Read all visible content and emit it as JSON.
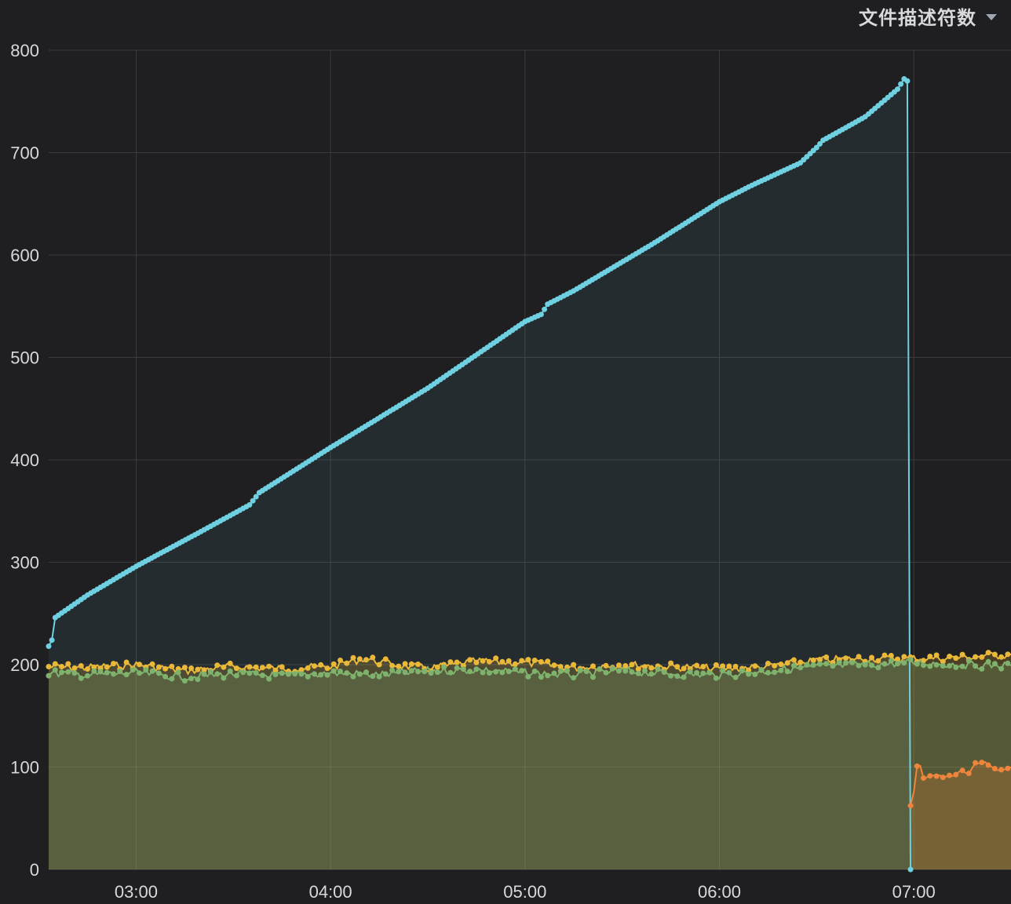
{
  "panel": {
    "title": "文件描述符数",
    "menu_icon": "caret-down-icon"
  },
  "chart_data": {
    "type": "line",
    "title": "文件描述符数",
    "xlabel": "",
    "ylabel": "",
    "x_unit": "time (HH:MM)",
    "xlim": [
      "02:33",
      "07:30"
    ],
    "ylim": [
      0,
      800
    ],
    "grid": true,
    "legend": "none",
    "x_ticks": [
      "03:00",
      "04:00",
      "05:00",
      "06:00",
      "07:00"
    ],
    "y_ticks": [
      0,
      100,
      200,
      300,
      400,
      500,
      600,
      700,
      800
    ],
    "series": [
      {
        "color": "#6ed0e0",
        "fill": "#6ed0e0",
        "points": [
          [
            "02:33",
            218
          ],
          [
            "02:34",
            224
          ],
          [
            "02:35",
            246
          ],
          [
            "02:45",
            268
          ],
          [
            "03:00",
            296
          ],
          [
            "03:20",
            330
          ],
          [
            "03:35",
            356
          ],
          [
            "03:38",
            368
          ],
          [
            "04:00",
            412
          ],
          [
            "04:30",
            470
          ],
          [
            "05:00",
            535
          ],
          [
            "05:05",
            542
          ],
          [
            "05:07",
            552
          ],
          [
            "05:15",
            565
          ],
          [
            "05:40",
            612
          ],
          [
            "06:00",
            652
          ],
          [
            "06:10",
            668
          ],
          [
            "06:25",
            690
          ],
          [
            "06:30",
            705
          ],
          [
            "06:32",
            712
          ],
          [
            "06:45",
            735
          ],
          [
            "06:55",
            762
          ],
          [
            "06:57",
            772
          ],
          [
            "06:58",
            770
          ],
          [
            "06:59",
            0
          ]
        ]
      },
      {
        "color": "#eab839",
        "fill": "#eab839",
        "points": [
          [
            "02:33",
            198
          ],
          [
            "02:45",
            197
          ],
          [
            "03:00",
            200
          ],
          [
            "03:15",
            194
          ],
          [
            "03:30",
            198
          ],
          [
            "03:45",
            196
          ],
          [
            "04:00",
            198
          ],
          [
            "04:10",
            206
          ],
          [
            "04:20",
            200
          ],
          [
            "04:30",
            196
          ],
          [
            "04:45",
            203
          ],
          [
            "05:00",
            202
          ],
          [
            "05:15",
            197
          ],
          [
            "05:30",
            200
          ],
          [
            "05:45",
            198
          ],
          [
            "06:00",
            196
          ],
          [
            "06:15",
            198
          ],
          [
            "06:30",
            204
          ],
          [
            "06:45",
            206
          ],
          [
            "07:00",
            206
          ],
          [
            "07:15",
            207
          ],
          [
            "07:30",
            210
          ]
        ]
      },
      {
        "color": "#7eb26d",
        "fill": "#7eb26d",
        "points": [
          [
            "02:33",
            192
          ],
          [
            "02:45",
            190
          ],
          [
            "03:00",
            192
          ],
          [
            "03:15",
            188
          ],
          [
            "03:30",
            191
          ],
          [
            "03:45",
            189
          ],
          [
            "04:00",
            192
          ],
          [
            "04:15",
            190
          ],
          [
            "04:30",
            194
          ],
          [
            "04:45",
            195
          ],
          [
            "05:00",
            192
          ],
          [
            "05:15",
            190
          ],
          [
            "05:30",
            194
          ],
          [
            "05:45",
            191
          ],
          [
            "06:00",
            190
          ],
          [
            "06:15",
            194
          ],
          [
            "06:30",
            198
          ],
          [
            "06:45",
            200
          ],
          [
            "07:00",
            202
          ],
          [
            "07:15",
            200
          ],
          [
            "07:30",
            199
          ]
        ]
      },
      {
        "color": "#ef843c",
        "fill": "#ef843c",
        "points": [
          [
            "06:59",
            63
          ],
          [
            "07:00",
            75
          ],
          [
            "07:01",
            100
          ],
          [
            "07:02",
            102
          ],
          [
            "07:03",
            90
          ],
          [
            "07:06",
            92
          ],
          [
            "07:10",
            90
          ],
          [
            "07:13",
            93
          ],
          [
            "07:15",
            96
          ],
          [
            "07:17",
            93
          ],
          [
            "07:19",
            104
          ],
          [
            "07:22",
            105
          ],
          [
            "07:24",
            100
          ],
          [
            "07:26",
            96
          ],
          [
            "07:28",
            97
          ],
          [
            "07:30",
            100
          ]
        ]
      }
    ]
  }
}
